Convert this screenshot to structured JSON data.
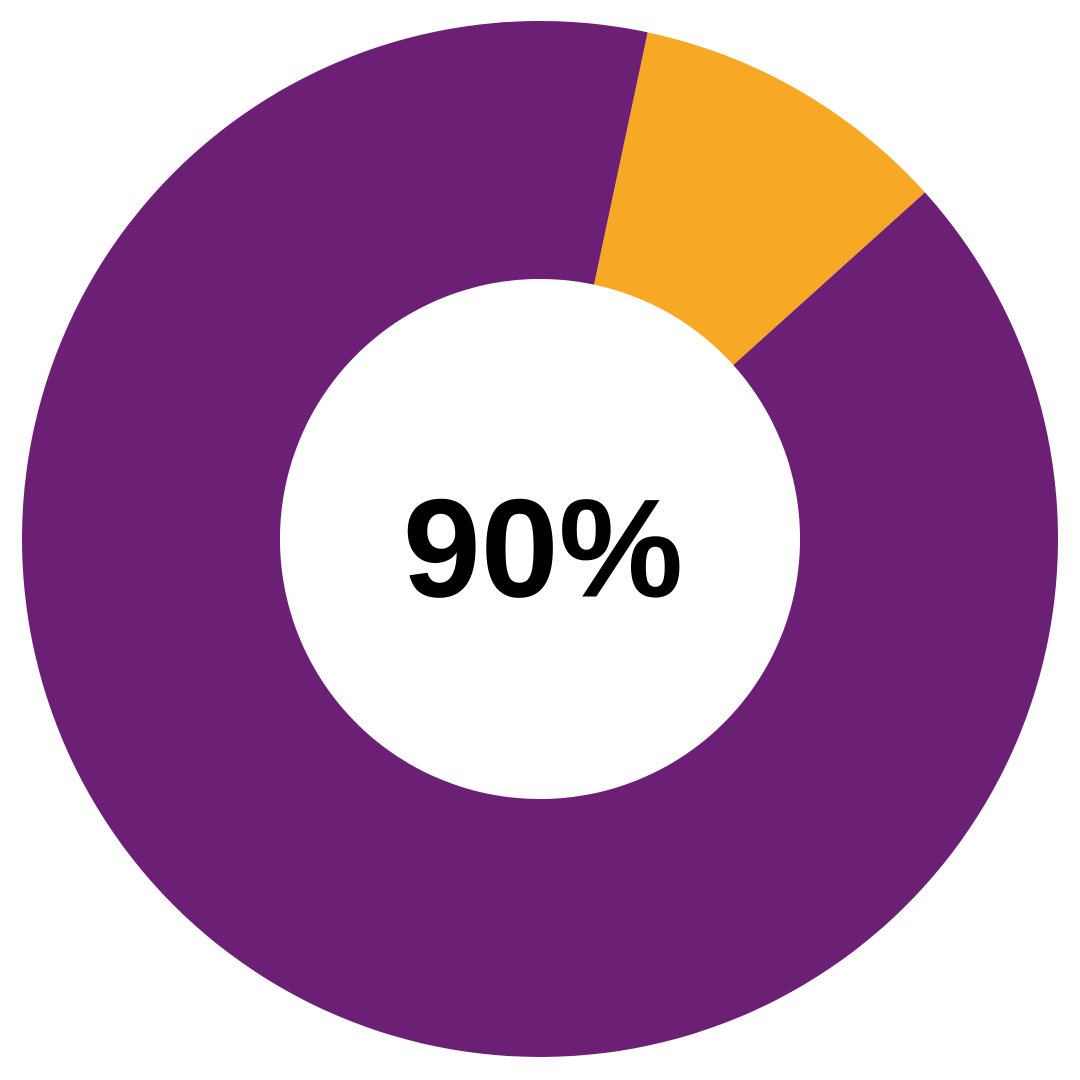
{
  "chart_data": {
    "type": "pie",
    "variant": "donut",
    "title": "",
    "center_label": "90%",
    "legend": "none",
    "background_color": "#ffffff",
    "center_label_color": "#000000",
    "start_angle_deg": 48,
    "inner_radius_ratio": 0.502,
    "segments": [
      {
        "value": 90,
        "color": "#6B2076"
      },
      {
        "value": 10,
        "color": "#F7A825"
      }
    ]
  }
}
